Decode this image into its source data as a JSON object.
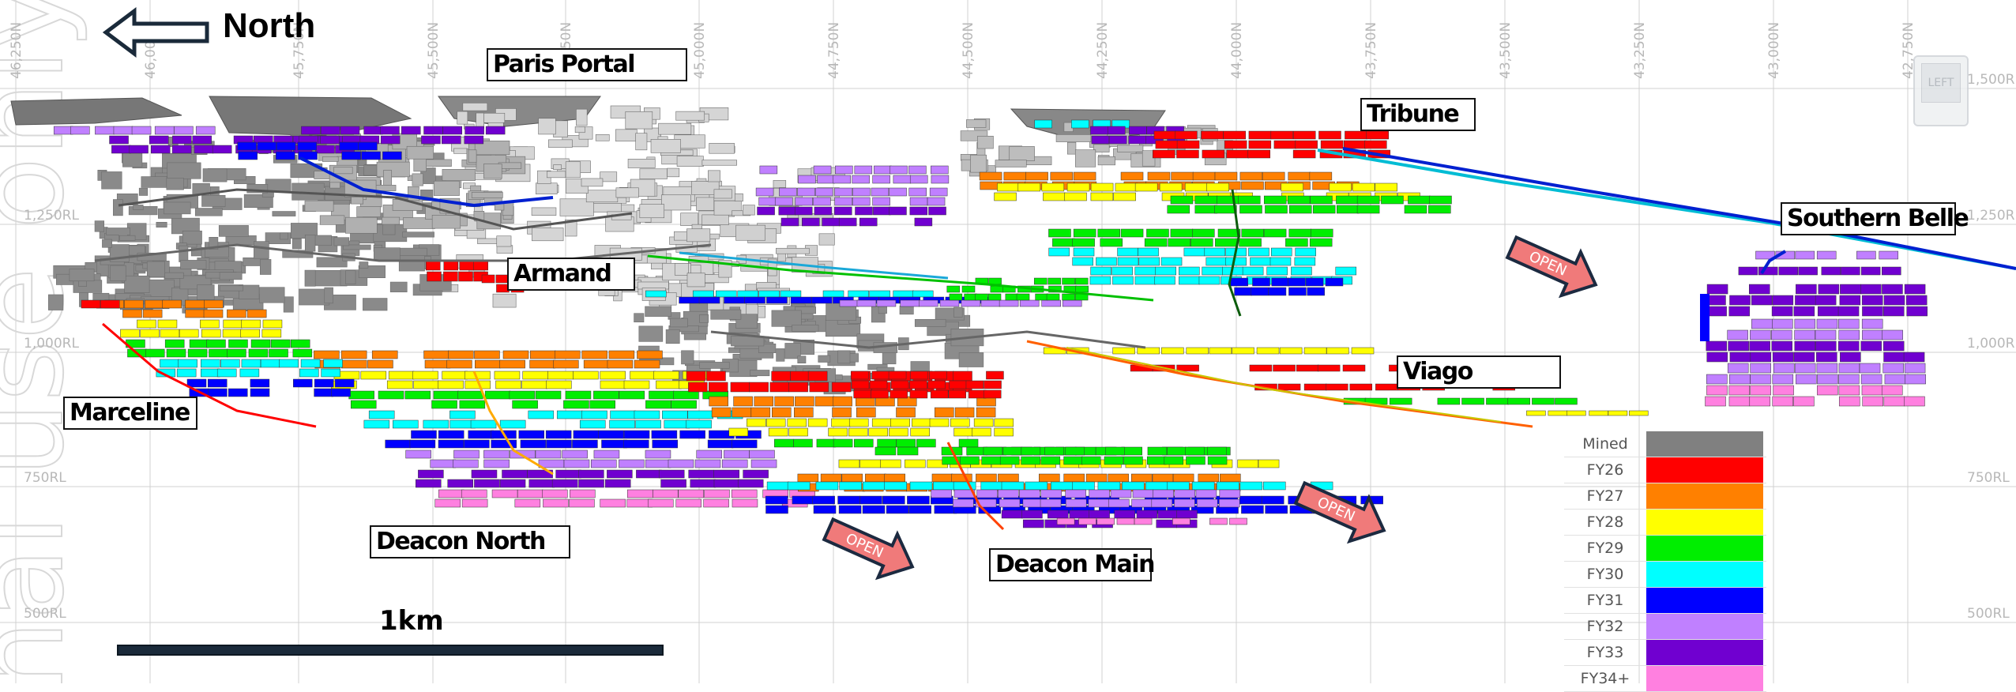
{
  "header": {
    "north_label": "North"
  },
  "grid": {
    "northings": [
      "46,250N",
      "46,000N",
      "45,750N",
      "45,500N",
      "45,250N",
      "45,000N",
      "44,750N",
      "44,500N",
      "44,250N",
      "44,000N",
      "43,750N",
      "43,500N",
      "43,250N",
      "43,000N",
      "42,750N"
    ],
    "rl_left": [
      "1,250RL",
      "1,000RL",
      "750RL",
      "500RL"
    ],
    "rl_right": [
      "1,500RL",
      "1,250RL",
      "1,000RL",
      "750RL",
      "500RL"
    ]
  },
  "areas": {
    "paris_portal": "Paris Portal",
    "tribune": "Tribune",
    "southern_belle": "Southern Belle",
    "armand": "Armand",
    "viago": "Viago",
    "marceline": "Marceline",
    "deacon_north": "Deacon North",
    "deacon_main": "Deacon Main"
  },
  "open_arrows": [
    "OPEN",
    "OPEN",
    "OPEN"
  ],
  "scale": {
    "label": "1km"
  },
  "nav_cube": {
    "face": "LEFT"
  },
  "watermark": "nal use only",
  "legend": {
    "items": [
      {
        "label": "Mined",
        "color": "#808080"
      },
      {
        "label": "FY26",
        "color": "#ff0000"
      },
      {
        "label": "FY27",
        "color": "#ff8000"
      },
      {
        "label": "FY28",
        "color": "#ffff00"
      },
      {
        "label": "FY29",
        "color": "#00ee00"
      },
      {
        "label": "FY30",
        "color": "#00ffff"
      },
      {
        "label": "FY31",
        "color": "#0000ff"
      },
      {
        "label": "FY32",
        "color": "#c080ff"
      },
      {
        "label": "FY33",
        "color": "#7000d0"
      },
      {
        "label": "FY34+",
        "color": "#ff80e0"
      }
    ]
  }
}
